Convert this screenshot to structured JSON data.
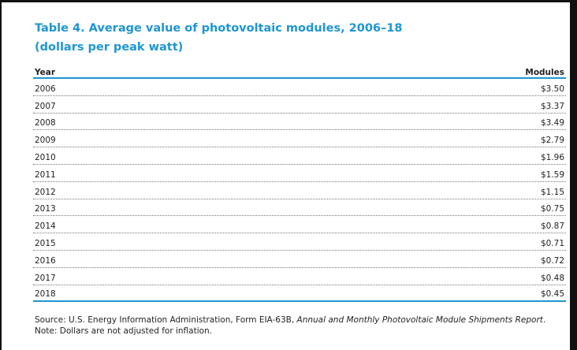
{
  "title": "Table 4. Average value of photovoltaic modules, 2006–18",
  "subtitle": "(dollars per peak watt)",
  "table": {
    "columns": [
      "Year",
      "Modules"
    ],
    "rows": [
      [
        "2006",
        "$3.50"
      ],
      [
        "2007",
        "$3.37"
      ],
      [
        "2008",
        "$3.49"
      ],
      [
        "2009",
        "$2.79"
      ],
      [
        "2010",
        "$1.96"
      ],
      [
        "2011",
        "$1.59"
      ],
      [
        "2012",
        "$1.15"
      ],
      [
        "2013",
        "$0.75"
      ],
      [
        "2014",
        "$0.87"
      ],
      [
        "2015",
        "$0.71"
      ],
      [
        "2016",
        "$0.72"
      ],
      [
        "2017",
        "$0.48"
      ],
      [
        "2018",
        "$0.45"
      ]
    ]
  },
  "source": [
    "Source: U.S. Energy Information Administration, Form EIA-63B, ",
    "Annual and Monthly Photovoltaic Module Shipments Report",
    "."
  ],
  "note": "Note: Dollars are not adjusted for inflation."
}
